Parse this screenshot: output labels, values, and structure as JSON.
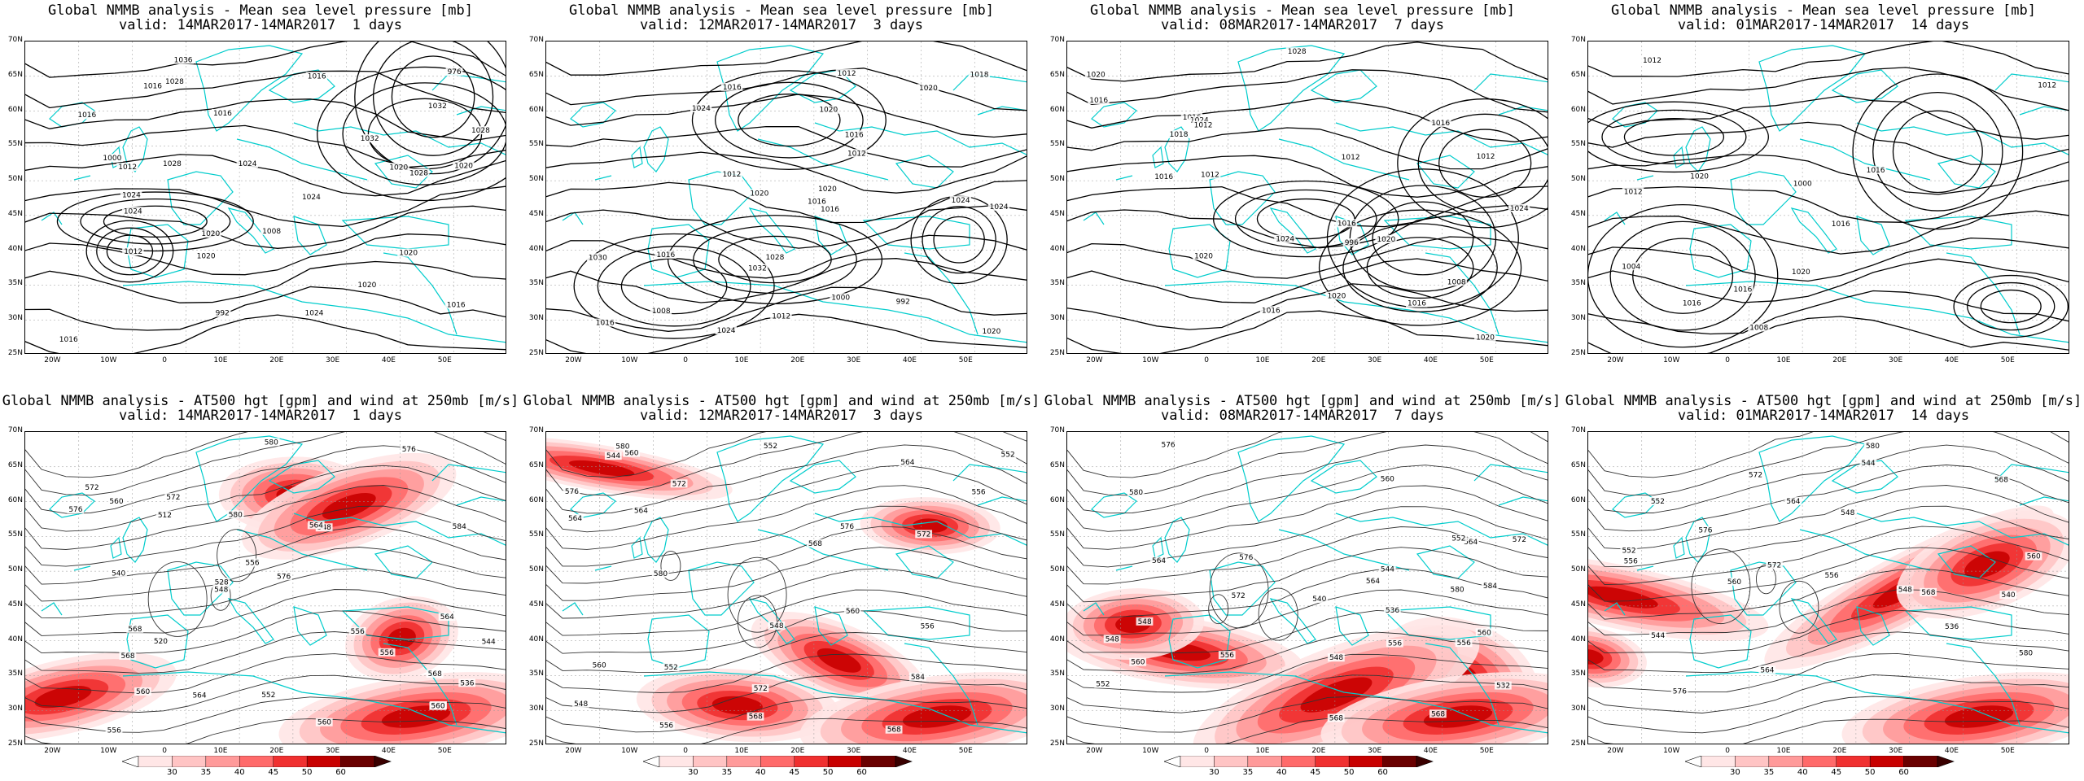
{
  "panels": [
    {
      "line1": "Global NMMB analysis - Mean sea level pressure [mb]",
      "line2": "valid: 14MAR2017-14MAR2017  1 days",
      "kind": "mslp",
      "labels": [
        "976",
        "992",
        "1000",
        "1008",
        "1016",
        "1020",
        "1024",
        "1028",
        "1032",
        "1036",
        "1032",
        "1028",
        "1024",
        "1020",
        "1016",
        "1012",
        "1016",
        "1020",
        "1024",
        "1028",
        "1024",
        "1020",
        "1016",
        "1012",
        "1016",
        "1020",
        "1016",
        "1020",
        "1024",
        "1028"
      ]
    },
    {
      "line1": "Global NMMB analysis - Mean sea level pressure [mb]",
      "line2": "valid: 12MAR2017-14MAR2017  3 days",
      "kind": "mslp",
      "labels": [
        "992",
        "1000",
        "1008",
        "1012",
        "1016",
        "1020",
        "1024",
        "1016",
        "1020",
        "1024",
        "1030",
        "1032",
        "1028",
        "1024",
        "1020",
        "1016",
        "1012",
        "1016",
        "1018",
        "1020",
        "1016",
        "1012",
        "1016",
        "1020",
        "1024",
        "1012"
      ]
    },
    {
      "line1": "Global NMMB analysis - Mean sea level pressure [mb]",
      "line2": "valid: 08MAR2017-14MAR2017  7 days",
      "kind": "mslp",
      "labels": [
        "996",
        "1008",
        "1012",
        "1016",
        "1018",
        "1024",
        "1016",
        "1020",
        "1024",
        "1028",
        "1024",
        "1020",
        "1016",
        "1012",
        "1016",
        "1020",
        "1020",
        "1016",
        "1012",
        "1016",
        "1020",
        "1016",
        "1012"
      ]
    },
    {
      "line1": "Global NMMB analysis - Mean sea level pressure [mb]",
      "line2": "valid: 01MAR2017-14MAR2017  14 days",
      "kind": "mslp",
      "labels": [
        "1000",
        "1004",
        "1008",
        "1012",
        "1016",
        "1012",
        "1016",
        "1020",
        "1016",
        "1012",
        "1020",
        "1016"
      ]
    },
    {
      "line1": "Global NMMB analysis - AT500 hgt [gpm] and wind at 250mb [m/s]",
      "line2": "valid: 14MAR2017-14MAR2017  1 days",
      "kind": "z500",
      "labels": [
        "512",
        "520",
        "528",
        "536",
        "540",
        "544",
        "548",
        "552",
        "556",
        "560",
        "564",
        "568",
        "572",
        "576",
        "580",
        "584",
        "556",
        "560",
        "564",
        "568",
        "572",
        "576",
        "548",
        "556",
        "560",
        "564",
        "568",
        "572",
        "576",
        "580",
        "556",
        "560"
      ]
    },
    {
      "line1": "Global NMMB analysis - AT500 hgt [gpm] and wind at 250mb [m/s]",
      "line2": "valid: 12MAR2017-14MAR2017  3 days",
      "kind": "z500",
      "labels": [
        "544",
        "548",
        "552",
        "556",
        "560",
        "564",
        "568",
        "572",
        "576",
        "580",
        "584",
        "564",
        "568",
        "572",
        "576",
        "580",
        "560",
        "556",
        "552",
        "548",
        "552",
        "556",
        "560",
        "564",
        "568",
        "572"
      ]
    },
    {
      "line1": "Global NMMB analysis - AT500 hgt [gpm] and wind at 250mb [m/s]",
      "line2": "valid: 08MAR2017-14MAR2017  7 days",
      "kind": "z500",
      "labels": [
        "532",
        "536",
        "540",
        "544",
        "548",
        "552",
        "556",
        "560",
        "564",
        "568",
        "572",
        "576",
        "580",
        "548",
        "552",
        "556",
        "560",
        "564",
        "568",
        "576",
        "580",
        "584",
        "560",
        "548",
        "556",
        "564",
        "572"
      ]
    },
    {
      "line1": "Global NMMB analysis - AT500 hgt [gpm] and wind at 250mb [m/s]",
      "line2": "valid: 01MAR2017-14MAR2017  14 days",
      "kind": "z500",
      "labels": [
        "536",
        "540",
        "544",
        "548",
        "552",
        "556",
        "560",
        "564",
        "568",
        "572",
        "576",
        "580",
        "544",
        "548",
        "552",
        "556",
        "560",
        "564",
        "568",
        "572",
        "576",
        "580"
      ]
    }
  ],
  "axes": {
    "lat": [
      "70N",
      "65N",
      "60N",
      "55N",
      "50N",
      "45N",
      "40N",
      "35N",
      "30N",
      "25N"
    ],
    "lon": [
      "20W",
      "10W",
      "0",
      "10E",
      "20E",
      "30E",
      "40E",
      "50E"
    ]
  },
  "colorbar": {
    "ticks": [
      "30",
      "35",
      "40",
      "45",
      "50",
      "60"
    ],
    "colors": [
      "#ffe6e6",
      "#ffc4c4",
      "#ff9a9a",
      "#ff6a6a",
      "#f03030",
      "#c80000",
      "#6a0000"
    ]
  },
  "colors": {
    "coast": "#00cccc",
    "contour": "#000000",
    "grid": "#999999"
  }
}
